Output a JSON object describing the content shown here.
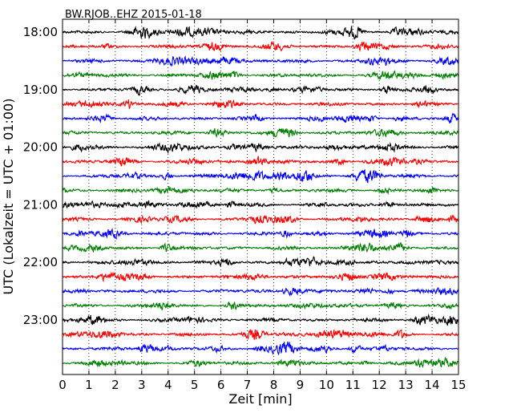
{
  "chart_data": {
    "type": "line",
    "title": "BW.RJOB..EHZ 2015-01-18",
    "xlabel": "Zeit  [min]",
    "ylabel": "UTC (Lokalzeit = UTC + 01:00)",
    "xlim": [
      0,
      15
    ],
    "x_ticks": [
      "0",
      "1",
      "2",
      "3",
      "4",
      "5",
      "6",
      "7",
      "8",
      "9",
      "10",
      "11",
      "12",
      "13",
      "14",
      "15"
    ],
    "y_tick_labels": [
      "18:00",
      "19:00",
      "20:00",
      "21:00",
      "22:00",
      "23:00"
    ],
    "rows_per_hour": 4,
    "row_minutes": 15,
    "start_time": "18:00",
    "end_time": "24:00",
    "trace_colors": [
      "#000000",
      "#ff0000",
      "#0000ff",
      "#007f00"
    ],
    "vertical_grid": "dotted",
    "series": [
      {
        "start": "18:00",
        "color": "#000000"
      },
      {
        "start": "18:15",
        "color": "#ff0000"
      },
      {
        "start": "18:30",
        "color": "#0000ff"
      },
      {
        "start": "18:45",
        "color": "#007f00"
      },
      {
        "start": "19:00",
        "color": "#000000"
      },
      {
        "start": "19:15",
        "color": "#ff0000"
      },
      {
        "start": "19:30",
        "color": "#0000ff"
      },
      {
        "start": "19:45",
        "color": "#007f00"
      },
      {
        "start": "20:00",
        "color": "#000000"
      },
      {
        "start": "20:15",
        "color": "#ff0000"
      },
      {
        "start": "20:30",
        "color": "#0000ff"
      },
      {
        "start": "20:45",
        "color": "#007f00"
      },
      {
        "start": "21:00",
        "color": "#000000"
      },
      {
        "start": "21:15",
        "color": "#ff0000"
      },
      {
        "start": "21:30",
        "color": "#0000ff"
      },
      {
        "start": "21:45",
        "color": "#007f00"
      },
      {
        "start": "22:00",
        "color": "#000000"
      },
      {
        "start": "22:15",
        "color": "#ff0000"
      },
      {
        "start": "22:30",
        "color": "#0000ff"
      },
      {
        "start": "22:45",
        "color": "#007f00"
      },
      {
        "start": "23:00",
        "color": "#000000"
      },
      {
        "start": "23:15",
        "color": "#ff0000"
      },
      {
        "start": "23:30",
        "color": "#0000ff"
      },
      {
        "start": "23:45",
        "color": "#007f00"
      }
    ]
  }
}
